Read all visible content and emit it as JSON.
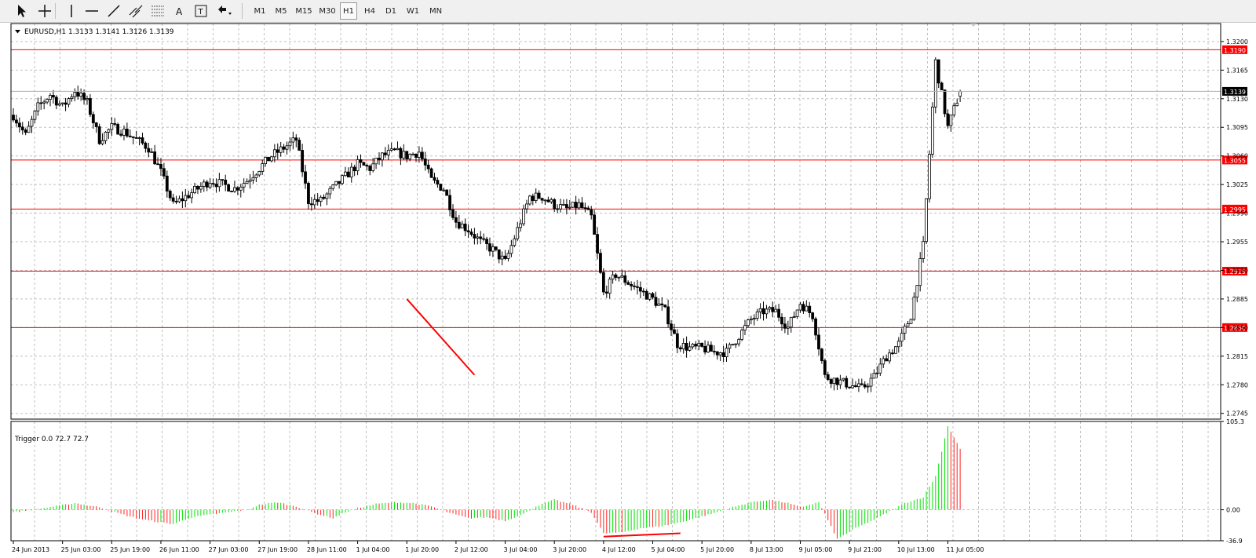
{
  "toolbar": {
    "tools": [
      {
        "name": "cursor-tool",
        "glyph": "arrow"
      },
      {
        "name": "crosshair-tool",
        "glyph": "crosshair"
      },
      {
        "name": "vertical-line-tool",
        "glyph": "vline"
      },
      {
        "name": "horizontal-line-tool",
        "glyph": "hline"
      },
      {
        "name": "trendline-tool",
        "glyph": "trend"
      },
      {
        "name": "equidistant-channel-tool",
        "glyph": "channel"
      },
      {
        "name": "fibonacci-tool",
        "glyph": "fibo"
      },
      {
        "name": "text-tool",
        "glyph": "A"
      },
      {
        "name": "text-label-tool",
        "glyph": "T"
      },
      {
        "name": "arrows-dropdown-tool",
        "glyph": "arrows"
      }
    ],
    "timeframes": [
      "M1",
      "M5",
      "M15",
      "M30",
      "H1",
      "H4",
      "D1",
      "W1",
      "MN"
    ],
    "active_timeframe": "H1"
  },
  "main_panel": {
    "info_label": "EURUSD,H1  1.3133 1.3141 1.3126 1.3139"
  },
  "indicator_panel": {
    "info_label": "Trigger 0.0 72.7 72.7"
  },
  "colors": {
    "level_line": "#ff0000",
    "level_label_bg": "#ff0000",
    "bull_bar": "#00e000",
    "bear_bar": "#ff2020",
    "grid": "#c0c0c0",
    "candle": "#000000",
    "price_label_bg": "#000000"
  },
  "chart_data": [
    {
      "type": "candlestick",
      "symbol": "EURUSD",
      "timeframe": "H1",
      "ohlc_last": {
        "open": 1.3133,
        "high": 1.3141,
        "low": 1.3126,
        "close": 1.3139
      },
      "current_price_label": "1.3139",
      "y_ticks": [
        "1.3200",
        "1.3165",
        "1.3130",
        "1.3095",
        "1.3060",
        "1.3025",
        "1.2990",
        "1.2955",
        "1.2920",
        "1.2885",
        "1.2850",
        "1.2815",
        "1.2780",
        "1.2745"
      ],
      "ylim": [
        1.2738,
        1.3222
      ],
      "horizontal_levels": [
        {
          "value": 1.319,
          "label": "1.3190"
        },
        {
          "value": 1.3055,
          "label": "1.3055"
        },
        {
          "value": 1.2995,
          "label": "1.2995"
        },
        {
          "value": 1.2919,
          "label": "1.2919"
        },
        {
          "value": 1.285,
          "label": "1.2850"
        }
      ],
      "trendlines": [
        {
          "from": {
            "bar": 128,
            "price": 1.2885
          },
          "to": {
            "bar": 150,
            "price": 1.2792
          }
        }
      ],
      "x_ticks": [
        {
          "bar": 0,
          "label": "24 Jun 2013"
        },
        {
          "bar": 16,
          "label": "25 Jun 03:00"
        },
        {
          "bar": 32,
          "label": "25 Jun 19:00"
        },
        {
          "bar": 48,
          "label": "26 Jun 11:00"
        },
        {
          "bar": 64,
          "label": "27 Jun 03:00"
        },
        {
          "bar": 80,
          "label": "27 Jun 19:00"
        },
        {
          "bar": 96,
          "label": "28 Jun 11:00"
        },
        {
          "bar": 112,
          "label": "1 Jul 04:00"
        },
        {
          "bar": 128,
          "label": "1 Jul 20:00"
        },
        {
          "bar": 144,
          "label": "2 Jul 12:00"
        },
        {
          "bar": 160,
          "label": "3 Jul 04:00"
        },
        {
          "bar": 176,
          "label": "3 Jul 20:00"
        },
        {
          "bar": 192,
          "label": "4 Jul 12:00"
        },
        {
          "bar": 208,
          "label": "5 Jul 04:00"
        },
        {
          "bar": 224,
          "label": "5 Jul 20:00"
        },
        {
          "bar": 240,
          "label": "8 Jul 13:00"
        },
        {
          "bar": 256,
          "label": "9 Jul 05:00"
        },
        {
          "bar": 272,
          "label": "9 Jul 21:00"
        },
        {
          "bar": 288,
          "label": "10 Jul 13:00"
        },
        {
          "bar": 304,
          "label": "11 Jul 05:00"
        }
      ],
      "price_path": [
        [
          0,
          1.311
        ],
        [
          4,
          1.3085
        ],
        [
          8,
          1.312
        ],
        [
          12,
          1.3135
        ],
        [
          16,
          1.312
        ],
        [
          20,
          1.314
        ],
        [
          24,
          1.3125
        ],
        [
          28,
          1.308
        ],
        [
          32,
          1.3095
        ],
        [
          36,
          1.309
        ],
        [
          40,
          1.308
        ],
        [
          44,
          1.307
        ],
        [
          48,
          1.304
        ],
        [
          52,
          1.3
        ],
        [
          56,
          1.301
        ],
        [
          60,
          1.302
        ],
        [
          64,
          1.303
        ],
        [
          68,
          1.3025
        ],
        [
          72,
          1.302
        ],
        [
          76,
          1.303
        ],
        [
          80,
          1.3045
        ],
        [
          84,
          1.306
        ],
        [
          88,
          1.307
        ],
        [
          92,
          1.308
        ],
        [
          96,
          1.3005
        ],
        [
          100,
          1.3005
        ],
        [
          104,
          1.302
        ],
        [
          108,
          1.3035
        ],
        [
          112,
          1.305
        ],
        [
          116,
          1.3045
        ],
        [
          120,
          1.306
        ],
        [
          124,
          1.3065
        ],
        [
          128,
          1.306
        ],
        [
          132,
          1.3065
        ],
        [
          136,
          1.303
        ],
        [
          140,
          1.302
        ],
        [
          144,
          1.298
        ],
        [
          148,
          1.297
        ],
        [
          152,
          1.2955
        ],
        [
          156,
          1.2945
        ],
        [
          160,
          1.293
        ],
        [
          164,
          1.297
        ],
        [
          168,
          1.301
        ],
        [
          172,
          1.301
        ],
        [
          176,
          1.3
        ],
        [
          180,
          1.2995
        ],
        [
          184,
          1.3
        ],
        [
          188,
          1.2985
        ],
        [
          192,
          1.2892
        ],
        [
          196,
          1.2915
        ],
        [
          200,
          1.2905
        ],
        [
          204,
          1.2895
        ],
        [
          208,
          1.2885
        ],
        [
          212,
          1.287
        ],
        [
          216,
          1.283
        ],
        [
          220,
          1.2825
        ],
        [
          224,
          1.2825
        ],
        [
          228,
          1.282
        ],
        [
          232,
          1.282
        ],
        [
          236,
          1.284
        ],
        [
          240,
          1.286
        ],
        [
          244,
          1.287
        ],
        [
          248,
          1.287
        ],
        [
          252,
          1.285
        ],
        [
          256,
          1.288
        ],
        [
          260,
          1.2865
        ],
        [
          264,
          1.279
        ],
        [
          268,
          1.2785
        ],
        [
          272,
          1.278
        ],
        [
          276,
          1.2775
        ],
        [
          280,
          1.279
        ],
        [
          284,
          1.2815
        ],
        [
          288,
          1.283
        ],
        [
          292,
          1.2865
        ],
        [
          296,
          1.295
        ],
        [
          300,
          1.3175
        ],
        [
          304,
          1.3095
        ],
        [
          308,
          1.3139
        ]
      ]
    },
    {
      "type": "bar",
      "name": "Trigger",
      "values_shown": [
        0.0,
        72.7,
        72.7
      ],
      "y_ticks": [
        "105.3",
        "0.00",
        "-36.9"
      ],
      "ylim": [
        -36.9,
        105.3
      ],
      "trendlines": [
        {
          "from": {
            "bar": 192,
            "value": -32.0
          },
          "to": {
            "bar": 217,
            "value": -28.0
          }
        }
      ],
      "value_path": [
        [
          0,
          -3
        ],
        [
          10,
          2
        ],
        [
          20,
          8
        ],
        [
          28,
          3
        ],
        [
          34,
          -4
        ],
        [
          40,
          -10
        ],
        [
          46,
          -14
        ],
        [
          52,
          -17
        ],
        [
          58,
          -9
        ],
        [
          64,
          -6
        ],
        [
          70,
          -3
        ],
        [
          76,
          0
        ],
        [
          80,
          6
        ],
        [
          86,
          9
        ],
        [
          92,
          4
        ],
        [
          98,
          -4
        ],
        [
          104,
          -10
        ],
        [
          108,
          -3
        ],
        [
          112,
          2
        ],
        [
          118,
          7
        ],
        [
          124,
          9
        ],
        [
          130,
          8
        ],
        [
          136,
          4
        ],
        [
          142,
          -4
        ],
        [
          148,
          -10
        ],
        [
          154,
          -9
        ],
        [
          160,
          -13
        ],
        [
          166,
          -5
        ],
        [
          170,
          4
        ],
        [
          176,
          12
        ],
        [
          182,
          6
        ],
        [
          188,
          -3
        ],
        [
          192,
          -28
        ],
        [
          198,
          -27
        ],
        [
          204,
          -22
        ],
        [
          210,
          -20
        ],
        [
          216,
          -16
        ],
        [
          222,
          -10
        ],
        [
          228,
          -4
        ],
        [
          234,
          3
        ],
        [
          240,
          9
        ],
        [
          246,
          12
        ],
        [
          252,
          8
        ],
        [
          256,
          3
        ],
        [
          262,
          9
        ],
        [
          264,
          -5
        ],
        [
          268,
          -35
        ],
        [
          274,
          -22
        ],
        [
          280,
          -12
        ],
        [
          286,
          0
        ],
        [
          290,
          8
        ],
        [
          296,
          15
        ],
        [
          300,
          40
        ],
        [
          304,
          100
        ],
        [
          308,
          72.7
        ]
      ]
    }
  ]
}
